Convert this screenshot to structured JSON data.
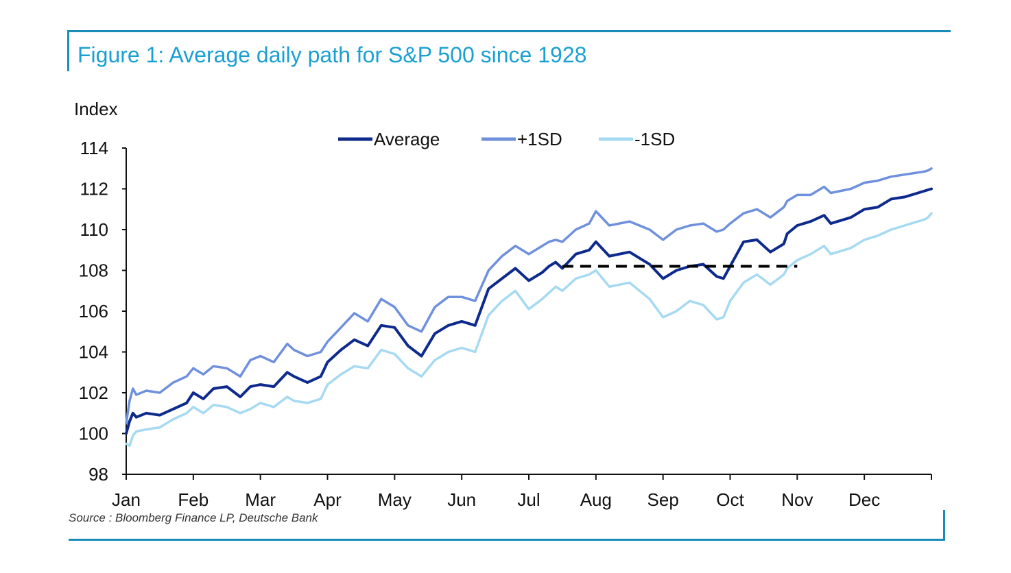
{
  "figure_title": "Figure 1: Average daily path for S&P 500 since 1928",
  "source": "Source : Bloomberg Finance LP, Deutsche Bank",
  "colors": {
    "frame": "#1a8cb8",
    "title": "#1aa0d2",
    "average": "#0d2a8c",
    "plus1sd": "#6f90dc",
    "minus1sd": "#a6d9f2",
    "reference": "#000000"
  },
  "chart_data": {
    "type": "line",
    "ylabel": "Index",
    "xlabel": "",
    "ylim": [
      98,
      114
    ],
    "y_ticks": [
      "98",
      "100",
      "102",
      "104",
      "106",
      "108",
      "110",
      "112",
      "114"
    ],
    "x_ticks": [
      "Jan",
      "Feb",
      "Mar",
      "Apr",
      "May",
      "Jun",
      "Jul",
      "Aug",
      "Sep",
      "Oct",
      "Nov",
      "Dec"
    ],
    "grid": false,
    "legend_position": "top-center",
    "x": [
      0.0,
      0.05,
      0.1,
      0.15,
      0.3,
      0.5,
      0.7,
      0.9,
      1.0,
      1.15,
      1.3,
      1.5,
      1.7,
      1.85,
      2.0,
      2.2,
      2.4,
      2.5,
      2.7,
      2.9,
      3.0,
      3.2,
      3.4,
      3.6,
      3.8,
      4.0,
      4.2,
      4.4,
      4.6,
      4.8,
      5.0,
      5.2,
      5.4,
      5.6,
      5.8,
      6.0,
      6.2,
      6.3,
      6.4,
      6.5,
      6.7,
      6.9,
      7.0,
      7.2,
      7.5,
      7.8,
      8.0,
      8.2,
      8.4,
      8.6,
      8.8,
      8.9,
      9.0,
      9.2,
      9.4,
      9.6,
      9.8,
      9.85,
      10.0,
      10.2,
      10.4,
      10.5,
      10.8,
      11.0,
      11.2,
      11.4,
      11.6,
      11.8,
      11.9,
      11.95,
      12.0
    ],
    "series": [
      {
        "name": "Average",
        "values": [
          100.0,
          100.6,
          101.0,
          100.8,
          101.0,
          100.9,
          101.2,
          101.5,
          102.0,
          101.7,
          102.2,
          102.3,
          101.8,
          102.3,
          102.4,
          102.3,
          103.0,
          102.8,
          102.5,
          102.8,
          103.5,
          104.1,
          104.6,
          104.3,
          105.3,
          105.2,
          104.3,
          103.8,
          104.9,
          105.3,
          105.5,
          105.3,
          107.1,
          107.6,
          108.1,
          107.5,
          107.9,
          108.2,
          108.4,
          108.1,
          108.8,
          109.0,
          109.4,
          108.7,
          108.9,
          108.3,
          107.6,
          108.0,
          108.2,
          108.3,
          107.7,
          107.6,
          108.2,
          109.4,
          109.5,
          108.9,
          109.3,
          109.8,
          110.2,
          110.4,
          110.7,
          110.3,
          110.6,
          111.0,
          111.1,
          111.5,
          111.6,
          111.8,
          111.9,
          111.95,
          112.0
        ]
      },
      {
        "name": "+1SD",
        "values": [
          100.5,
          101.6,
          102.2,
          101.9,
          102.1,
          102.0,
          102.5,
          102.8,
          103.2,
          102.9,
          103.3,
          103.2,
          102.8,
          103.6,
          103.8,
          103.5,
          104.4,
          104.1,
          103.8,
          104.0,
          104.5,
          105.2,
          105.9,
          105.5,
          106.6,
          106.2,
          105.3,
          105.0,
          106.2,
          106.7,
          106.7,
          106.5,
          108.0,
          108.7,
          109.2,
          108.8,
          109.2,
          109.4,
          109.5,
          109.4,
          110.0,
          110.3,
          110.9,
          110.2,
          110.4,
          110.0,
          109.5,
          110.0,
          110.2,
          110.3,
          109.9,
          110.0,
          110.3,
          110.8,
          111.0,
          110.6,
          111.1,
          111.4,
          111.7,
          111.7,
          112.1,
          111.8,
          112.0,
          112.3,
          112.4,
          112.6,
          112.7,
          112.8,
          112.85,
          112.9,
          113.0
        ]
      },
      {
        "name": "-1SD",
        "values": [
          99.5,
          99.4,
          99.9,
          100.1,
          100.2,
          100.3,
          100.7,
          101.0,
          101.3,
          101.0,
          101.4,
          101.3,
          101.0,
          101.2,
          101.5,
          101.3,
          101.8,
          101.6,
          101.5,
          101.7,
          102.4,
          102.9,
          103.3,
          103.2,
          104.1,
          103.9,
          103.2,
          102.8,
          103.6,
          104.0,
          104.2,
          104.0,
          105.8,
          106.5,
          107.0,
          106.1,
          106.6,
          106.9,
          107.2,
          107.0,
          107.6,
          107.8,
          108.0,
          107.2,
          107.4,
          106.6,
          105.7,
          106.0,
          106.5,
          106.3,
          105.6,
          105.7,
          106.5,
          107.4,
          107.8,
          107.3,
          107.8,
          108.1,
          108.5,
          108.8,
          109.2,
          108.8,
          109.1,
          109.5,
          109.7,
          110.0,
          110.2,
          110.4,
          110.5,
          110.6,
          110.8
        ]
      }
    ],
    "reference_line": {
      "x_start": 6.5,
      "x_end": 10.0,
      "y": 108.2
    }
  }
}
